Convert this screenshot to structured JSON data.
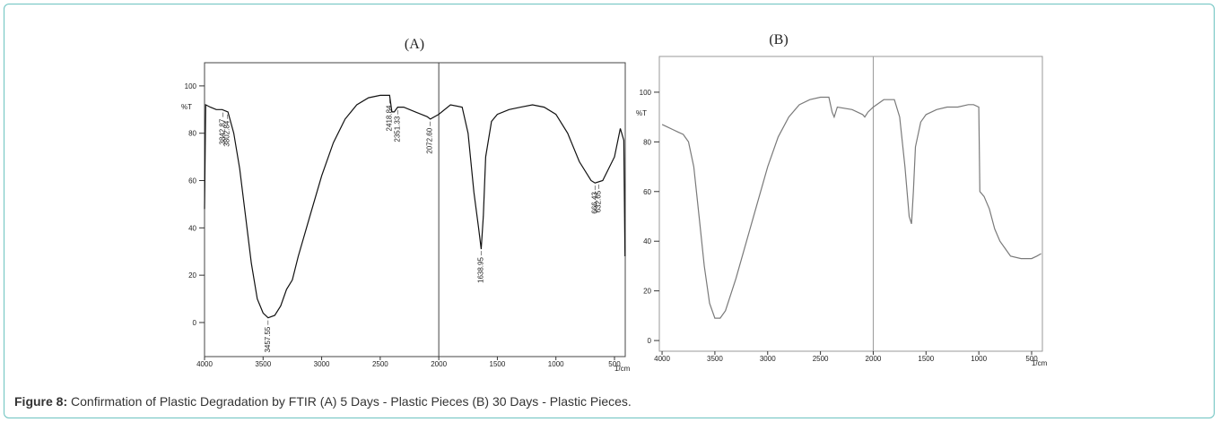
{
  "chart_data": [
    {
      "type": "line",
      "title": "(A)",
      "ylabel": "%T",
      "xlabel": "1/cm",
      "color": "#111111",
      "x": [
        4000,
        3990,
        3950,
        3900,
        3850,
        3800,
        3750,
        3700,
        3650,
        3600,
        3550,
        3500,
        3457,
        3400,
        3350,
        3300,
        3250,
        3200,
        3100,
        3000,
        2900,
        2800,
        2700,
        2600,
        2500,
        2420,
        2400,
        2380,
        2351,
        2300,
        2200,
        2100,
        2072,
        2000,
        1900,
        1800,
        1750,
        1700,
        1660,
        1638,
        1620,
        1600,
        1550,
        1500,
        1400,
        1300,
        1200,
        1100,
        1000,
        900,
        800,
        700,
        666,
        600,
        500,
        450,
        420,
        410
      ],
      "values": [
        48,
        92,
        91,
        90,
        90,
        89,
        80,
        65,
        45,
        25,
        10,
        4,
        2,
        3,
        7,
        14,
        18,
        28,
        45,
        62,
        76,
        86,
        92,
        95,
        96,
        96,
        89,
        89,
        91,
        91,
        89,
        87,
        86,
        88,
        92,
        91,
        80,
        55,
        40,
        31,
        45,
        70,
        85,
        88,
        90,
        91,
        92,
        91,
        88,
        80,
        68,
        60,
        59,
        60,
        70,
        82,
        77,
        28
      ],
      "xlim": [
        4000,
        408
      ],
      "ylim": [
        -14.4,
        109.8
      ],
      "xticks": [
        4000,
        3500,
        3000,
        2500,
        2000,
        1500,
        1000,
        500
      ],
      "yticks": [
        0,
        20,
        40,
        60,
        80,
        100
      ],
      "peaks": [
        {
          "value": 3842.87,
          "label": "3842.87"
        },
        {
          "value": 3802.84,
          "label": "3802.84"
        },
        {
          "value": 3457.55,
          "label": "3457.55"
        },
        {
          "value": 2418.84,
          "label": "2418.84"
        },
        {
          "value": 2351.33,
          "label": "2351.33"
        },
        {
          "value": 2072.6,
          "label": "2072.60"
        },
        {
          "value": 1638.95,
          "label": "1638.95"
        },
        {
          "value": 666.43,
          "label": "666.43"
        },
        {
          "value": 632.65,
          "label": "632.65"
        }
      ]
    },
    {
      "type": "line",
      "title": "(B)",
      "ylabel": "%T",
      "xlabel": "1/cm",
      "color": "#7a7a7a",
      "x": [
        4000,
        3950,
        3900,
        3850,
        3800,
        3750,
        3700,
        3650,
        3600,
        3550,
        3500,
        3450,
        3400,
        3300,
        3200,
        3100,
        3000,
        2900,
        2800,
        2700,
        2600,
        2500,
        2420,
        2390,
        2370,
        2340,
        2200,
        2100,
        2080,
        2050,
        2000,
        1900,
        1800,
        1750,
        1700,
        1660,
        1638,
        1620,
        1600,
        1550,
        1500,
        1400,
        1300,
        1200,
        1100,
        1050,
        1000,
        990,
        950,
        900,
        850,
        800,
        750,
        700,
        600,
        500,
        450,
        410
      ],
      "values": [
        87,
        86,
        85,
        84,
        83,
        80,
        70,
        50,
        30,
        15,
        9,
        9,
        12,
        25,
        40,
        55,
        70,
        82,
        90,
        95,
        97,
        98,
        98,
        92,
        90,
        94,
        93,
        91,
        90,
        92,
        94,
        97,
        97,
        90,
        70,
        50,
        47,
        60,
        78,
        88,
        91,
        93,
        94,
        94,
        95,
        95,
        94,
        60,
        58,
        53,
        45,
        40,
        37,
        34,
        33,
        33,
        34,
        35
      ],
      "xlim": [
        4026,
        398
      ],
      "ylim": [
        -4.3,
        114.4
      ],
      "xticks": [
        4000,
        3500,
        3000,
        2500,
        2000,
        1500,
        1000,
        500
      ],
      "yticks": [
        0,
        20,
        40,
        60,
        80,
        100
      ]
    }
  ],
  "caption": {
    "label": "Figure 8:",
    "text": " Confirmation of Plastic Degradation by FTIR (A) 5 Days - Plastic Pieces (B) 30 Days - Plastic Pieces."
  }
}
